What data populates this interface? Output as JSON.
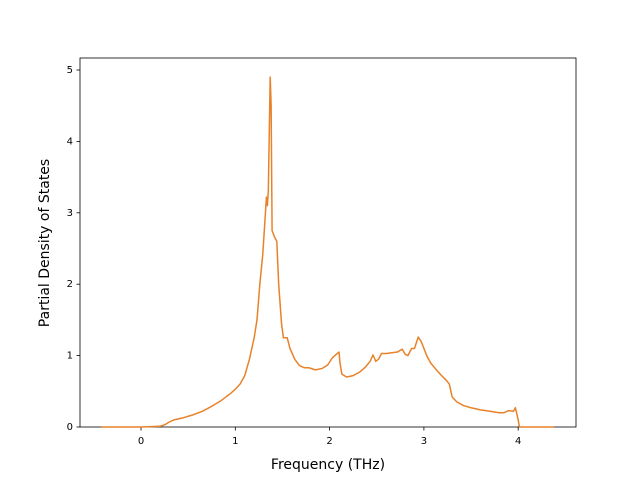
{
  "chart_data": {
    "type": "line",
    "xlabel": "Frequency (THz)",
    "ylabel": "Partial Density of States",
    "x": [
      -0.42,
      0.0,
      0.2,
      0.25,
      0.3,
      0.35,
      0.45,
      0.55,
      0.65,
      0.75,
      0.85,
      0.95,
      1.0,
      1.05,
      1.1,
      1.15,
      1.2,
      1.23,
      1.26,
      1.29,
      1.31,
      1.33,
      1.34,
      1.35,
      1.37,
      1.38,
      1.39,
      1.42,
      1.44,
      1.46,
      1.49,
      1.51,
      1.55,
      1.58,
      1.63,
      1.68,
      1.73,
      1.78,
      1.85,
      1.92,
      1.98,
      2.03,
      2.1,
      2.11,
      2.13,
      2.18,
      2.25,
      2.32,
      2.38,
      2.43,
      2.46,
      2.49,
      2.52,
      2.55,
      2.6,
      2.66,
      2.72,
      2.77,
      2.8,
      2.83,
      2.87,
      2.9,
      2.94,
      2.97,
      3.0,
      3.03,
      3.07,
      3.12,
      3.18,
      3.24,
      3.27,
      3.3,
      3.35,
      3.42,
      3.5,
      3.6,
      3.7,
      3.8,
      3.85,
      3.9,
      3.95,
      3.97,
      4.0,
      4.01,
      4.02,
      4.38
    ],
    "series": [
      {
        "color": "#e8822a",
        "values": [
          0,
          0,
          0.01,
          0.03,
          0.07,
          0.1,
          0.13,
          0.17,
          0.22,
          0.29,
          0.37,
          0.47,
          0.53,
          0.6,
          0.72,
          0.95,
          1.25,
          1.5,
          2.0,
          2.4,
          2.8,
          3.22,
          3.1,
          3.3,
          4.9,
          4.5,
          2.75,
          2.65,
          2.6,
          2.0,
          1.45,
          1.25,
          1.25,
          1.1,
          0.95,
          0.86,
          0.83,
          0.83,
          0.8,
          0.82,
          0.87,
          0.97,
          1.05,
          0.9,
          0.74,
          0.7,
          0.72,
          0.77,
          0.84,
          0.92,
          1.01,
          0.92,
          0.95,
          1.03,
          1.03,
          1.04,
          1.05,
          1.09,
          1.02,
          1.0,
          1.1,
          1.1,
          1.26,
          1.2,
          1.1,
          1.0,
          0.9,
          0.82,
          0.73,
          0.65,
          0.6,
          0.42,
          0.35,
          0.3,
          0.27,
          0.24,
          0.22,
          0.2,
          0.2,
          0.23,
          0.22,
          0.27,
          0.1,
          0.02,
          0,
          0
        ]
      }
    ],
    "xlim": [
      -0.647,
      4.613
    ],
    "xticks": [
      0,
      1,
      2,
      3,
      4
    ],
    "ylim": [
      0,
      5.168
    ],
    "yticks": [
      0,
      1,
      2,
      3,
      4,
      5
    ]
  }
}
